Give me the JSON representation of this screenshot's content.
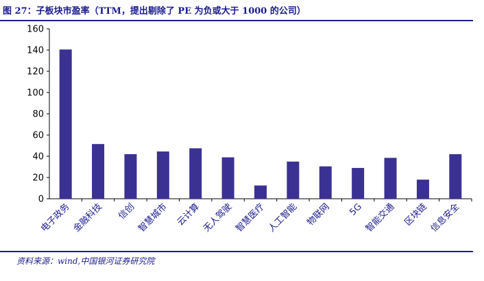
{
  "header": {
    "title": "图 27：子板块市盈率（TTM，提出剔除了 PE 为负或大于 1000 的公司）"
  },
  "footer": {
    "source": "资料来源：wind,中国银河证券研究院"
  },
  "colors": {
    "bar": "#3b3193",
    "accent": "#1a1a8c"
  },
  "chart_data": {
    "type": "bar",
    "title": "图 27：子板块市盈率（TTM，提出剔除了 PE 为负或大于 1000 的公司）",
    "xlabel": "",
    "ylabel": "",
    "categories": [
      "电子政务",
      "金融科技",
      "信创",
      "智慧城市",
      "云计算",
      "无人驾驶",
      "智慧医疗",
      "人工智能",
      "物联网",
      "5G",
      "智能交通",
      "区块链",
      "信息安全"
    ],
    "values": [
      140.5,
      51.5,
      42,
      44.5,
      47.5,
      39,
      12.5,
      35,
      30.5,
      29,
      38.5,
      18,
      42
    ],
    "ylim": [
      0,
      160
    ],
    "yticks": [
      0,
      20,
      40,
      60,
      80,
      100,
      120,
      140,
      160
    ],
    "grid": false,
    "legend": "none"
  }
}
